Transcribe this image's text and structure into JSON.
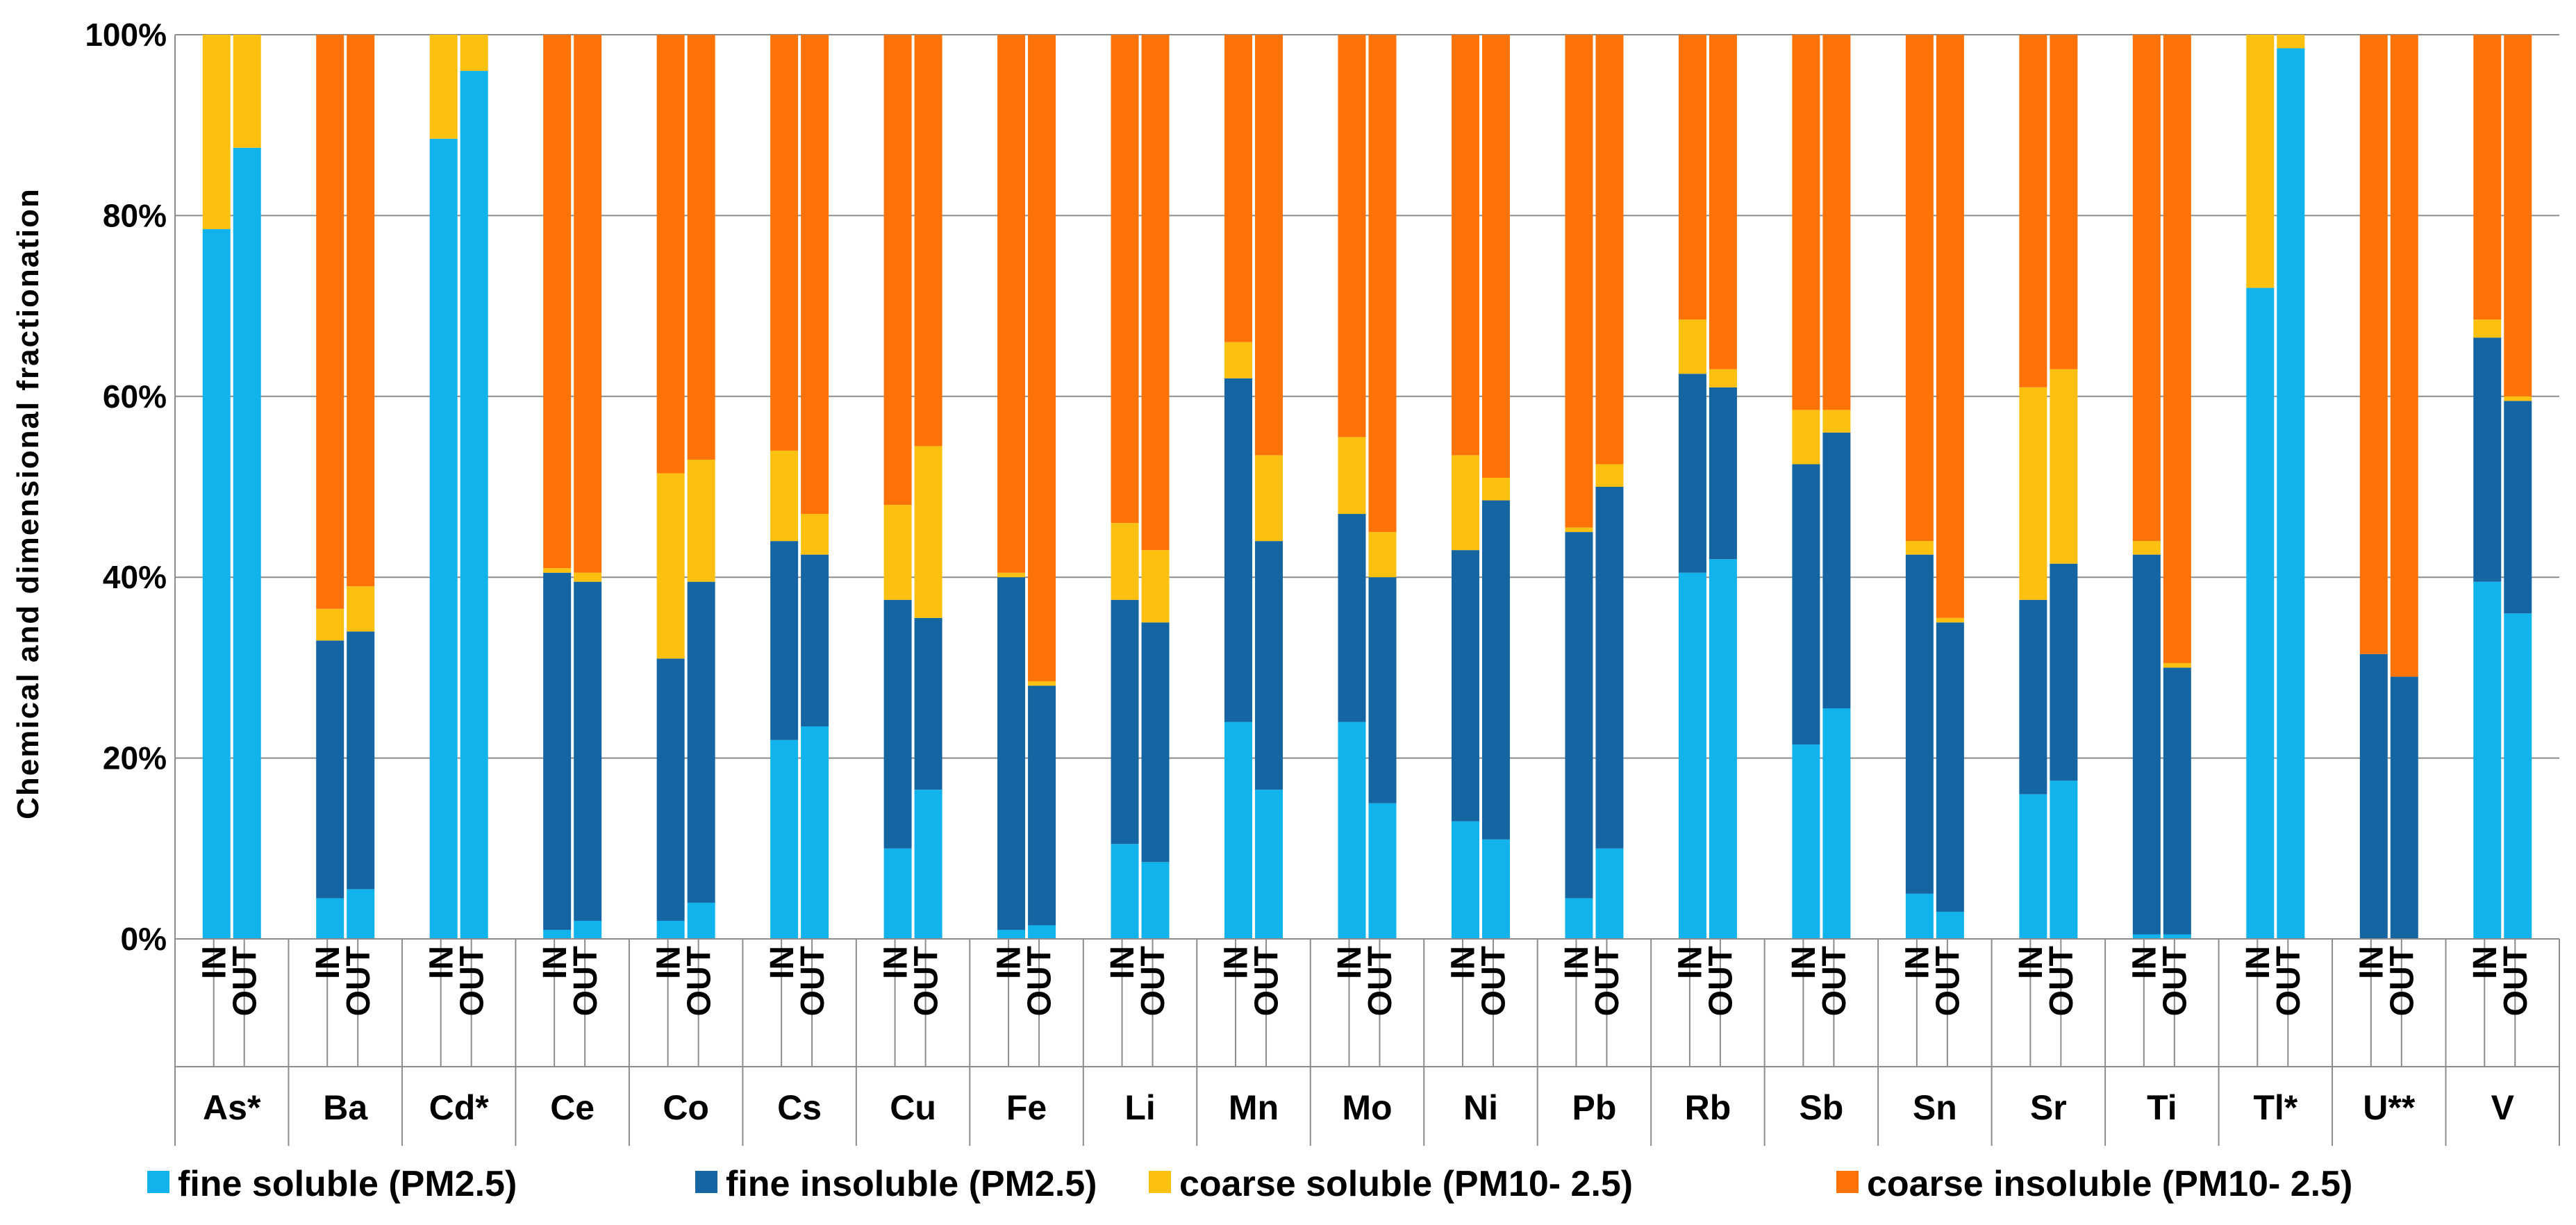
{
  "chart_data": {
    "type": "bar",
    "stacking": "percent",
    "ylabel": "Chemical and dimensional fractionation",
    "ylim": [
      0,
      100
    ],
    "y_ticks": [
      "0%",
      "20%",
      "40%",
      "60%",
      "80%",
      "100%"
    ],
    "y_tick_values": [
      0,
      20,
      40,
      60,
      80,
      100
    ],
    "grid": true,
    "legend_position": "bottom",
    "subcategories": [
      "IN",
      "OUT"
    ],
    "categories": [
      "As*",
      "Ba",
      "Cd*",
      "Ce",
      "Co",
      "Cs",
      "Cu",
      "Fe",
      "Li",
      "Mn",
      "Mo",
      "Ni",
      "Pb",
      "Rb",
      "Sb",
      "Sn",
      "Sr",
      "Ti",
      "Tl*",
      "U**",
      "V"
    ],
    "series": [
      {
        "name": "fine soluble (PM2.5)",
        "color": "#10B3EB",
        "values": [
          [
            78.5,
            87.5
          ],
          [
            4.5,
            5.5
          ],
          [
            88.5,
            96.0
          ],
          [
            1.0,
            2.0
          ],
          [
            2.0,
            4.0
          ],
          [
            22.0,
            23.5
          ],
          [
            10.0,
            16.5
          ],
          [
            1.0,
            1.5
          ],
          [
            10.5,
            8.5
          ],
          [
            24.0,
            16.5
          ],
          [
            24.0,
            15.0
          ],
          [
            13.0,
            11.0
          ],
          [
            4.5,
            10.0
          ],
          [
            40.5,
            42.0
          ],
          [
            21.5,
            25.5
          ],
          [
            5.0,
            3.0
          ],
          [
            16.0,
            17.5
          ],
          [
            0.5,
            0.5
          ],
          [
            72.0,
            98.5
          ],
          [
            0.0,
            0.0
          ],
          [
            39.5,
            36.0
          ]
        ]
      },
      {
        "name": "fine insoluble (PM2.5)",
        "color": "#1565A3",
        "values": [
          [
            0,
            0
          ],
          [
            28.5,
            28.5
          ],
          [
            0,
            0
          ],
          [
            39.5,
            37.5
          ],
          [
            29.0,
            35.5
          ],
          [
            22.0,
            19.0
          ],
          [
            27.5,
            19.0
          ],
          [
            39.0,
            26.5
          ],
          [
            27.0,
            26.5
          ],
          [
            38.0,
            27.5
          ],
          [
            23.0,
            25.0
          ],
          [
            30.0,
            37.5
          ],
          [
            40.5,
            40.0
          ],
          [
            22.0,
            19.0
          ],
          [
            31.0,
            30.5
          ],
          [
            37.5,
            32.0
          ],
          [
            21.5,
            24.0
          ],
          [
            42.0,
            29.5
          ],
          [
            0,
            0
          ],
          [
            31.5,
            29.0
          ],
          [
            27.0,
            23.5
          ]
        ]
      },
      {
        "name": "coarse soluble (PM10- 2.5)",
        "color": "#FCC010",
        "values": [
          [
            21.5,
            12.5
          ],
          [
            3.5,
            5.0
          ],
          [
            11.5,
            4.0
          ],
          [
            0.5,
            1.0
          ],
          [
            20.5,
            13.5
          ],
          [
            10.0,
            4.5
          ],
          [
            10.5,
            19.0
          ],
          [
            0.5,
            0.5
          ],
          [
            8.5,
            8.0
          ],
          [
            4.0,
            9.5
          ],
          [
            8.5,
            5.0
          ],
          [
            10.5,
            2.5
          ],
          [
            0.5,
            2.5
          ],
          [
            6.0,
            2.0
          ],
          [
            6.0,
            2.5
          ],
          [
            1.5,
            0.5
          ],
          [
            23.5,
            21.5
          ],
          [
            1.5,
            0.5
          ],
          [
            28.0,
            1.5
          ],
          [
            0,
            0
          ],
          [
            2.0,
            0.5
          ]
        ]
      },
      {
        "name": "coarse insoluble (PM10- 2.5)",
        "color": "#FE7307",
        "values": [
          [
            0,
            0
          ],
          [
            63.5,
            61.0
          ],
          [
            0,
            0
          ],
          [
            59.0,
            59.5
          ],
          [
            48.5,
            47.0
          ],
          [
            46.0,
            53.0
          ],
          [
            52.0,
            45.5
          ],
          [
            59.5,
            71.5
          ],
          [
            54.0,
            57.0
          ],
          [
            34.0,
            46.5
          ],
          [
            44.5,
            55.0
          ],
          [
            46.5,
            49.0
          ],
          [
            54.5,
            47.5
          ],
          [
            31.5,
            37.0
          ],
          [
            41.5,
            41.5
          ],
          [
            56.0,
            64.5
          ],
          [
            39.0,
            37.0
          ],
          [
            56.0,
            69.5
          ],
          [
            0,
            0
          ],
          [
            68.5,
            71.0
          ],
          [
            31.5,
            40.0
          ]
        ]
      }
    ]
  }
}
